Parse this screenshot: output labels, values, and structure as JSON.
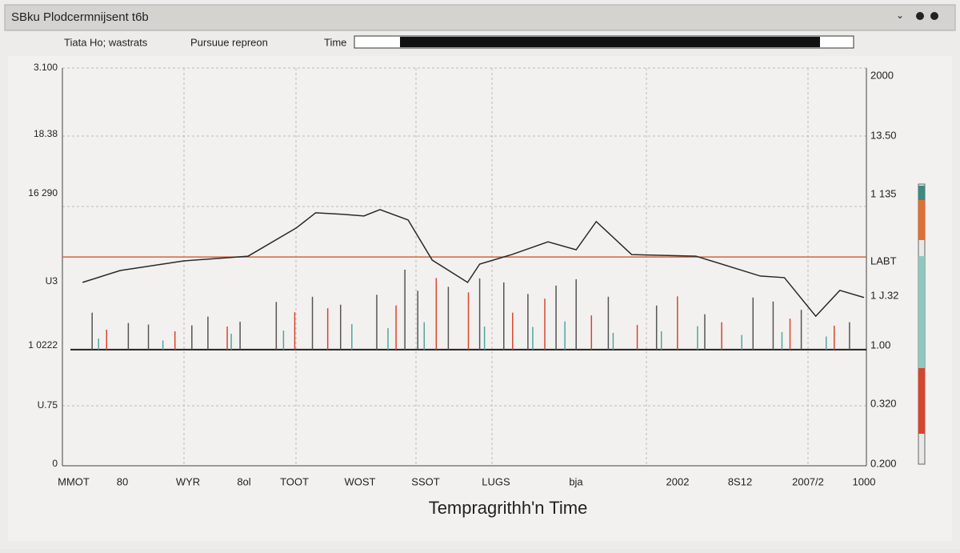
{
  "window": {
    "title": "SBku Plodcermnijsent t6b"
  },
  "toolbar": {
    "items": [
      "Tiata Ho; wastrats",
      "Pursuue repreon"
    ],
    "time_label": "Time"
  },
  "chart_data": {
    "type": "line",
    "x_label": "Tempragrithh'n Time",
    "xlim": [
      0,
      100
    ],
    "ylim": [
      0,
      100
    ],
    "y_labels": [
      "3.100",
      "18.38",
      "16 290",
      "U3",
      "1 0222",
      "U.75",
      "0"
    ],
    "y2_labels": [
      "2000",
      "13.50",
      "1 135",
      "LABT",
      "1 J.32",
      "1.00",
      "0.320",
      "0.200"
    ],
    "x_labels": [
      "MMOT",
      "80",
      "WYR",
      "8ol",
      "TOOT",
      "WOST",
      "SSOT",
      "LUGS",
      "bja",
      "2002",
      "8S12",
      "2007/2",
      "1000"
    ],
    "reference_line": {
      "value": 52.5,
      "color": "#d2643a"
    },
    "baseline": {
      "value": 29.2,
      "color": "#222222"
    },
    "series": [
      {
        "kind": "line",
        "color": "#2a2a2a",
        "x": [
          2.5,
          7.2,
          15.1,
          23.1,
          29.1,
          31.5,
          35.0,
          37.5,
          39.5,
          43.0,
          46.0,
          50.4,
          51.9,
          55.9,
          60.4,
          63.9,
          66.4,
          70.8,
          78.8,
          86.8,
          89.8,
          93.7,
          96.7,
          99.7
        ],
        "values": [
          46.1,
          49.1,
          51.5,
          52.7,
          59.8,
          63.6,
          63.2,
          62.8,
          64.4,
          61.8,
          51.7,
          46.1,
          50.7,
          53.1,
          56.3,
          54.3,
          61.4,
          53.1,
          52.7,
          47.7,
          47.3,
          37.6,
          44.1,
          42.3
        ]
      },
      {
        "kind": "spikes",
        "color": "#555555",
        "x": [
          3.7,
          8.2,
          10.7,
          16.1,
          18.1,
          22.1,
          26.6,
          31.1,
          34.6,
          39.1,
          42.6,
          44.2,
          48.0,
          51.9,
          54.9,
          57.9,
          61.4,
          63.9,
          67.9,
          73.9,
          79.9,
          85.9,
          88.4,
          91.9,
          97.9
        ],
        "values": [
          38.5,
          35.9,
          35.5,
          35.3,
          37.5,
          36.2,
          41.2,
          42.5,
          40.5,
          43.0,
          49.3,
          44.0,
          45.0,
          47.1,
          46.1,
          43.2,
          45.3,
          46.9,
          42.5,
          40.3,
          38.1,
          42.3,
          41.3,
          39.2,
          36.1
        ]
      },
      {
        "kind": "spikes",
        "color": "#d8452c",
        "x": [
          5.5,
          14.0,
          20.5,
          28.9,
          33.0,
          41.5,
          46.5,
          50.5,
          56.0,
          60.0,
          65.8,
          71.5,
          76.5,
          82.0,
          90.5,
          96.0
        ],
        "values": [
          34.2,
          33.8,
          35.0,
          38.6,
          39.6,
          40.3,
          47.2,
          43.6,
          38.5,
          42.0,
          37.8,
          35.4,
          42.6,
          36.1,
          37.0,
          35.2
        ]
      },
      {
        "kind": "spikes",
        "color": "#4fa6a0",
        "x": [
          4.5,
          12.5,
          21.0,
          27.5,
          36.0,
          40.5,
          45.0,
          52.5,
          58.5,
          62.5,
          68.5,
          74.5,
          79.0,
          84.5,
          89.5,
          95.0
        ],
        "values": [
          32.0,
          31.5,
          33.2,
          34.0,
          35.6,
          34.6,
          36.1,
          35.0,
          34.9,
          36.3,
          33.4,
          33.8,
          35.1,
          32.9,
          33.6,
          32.5
        ]
      }
    ]
  }
}
